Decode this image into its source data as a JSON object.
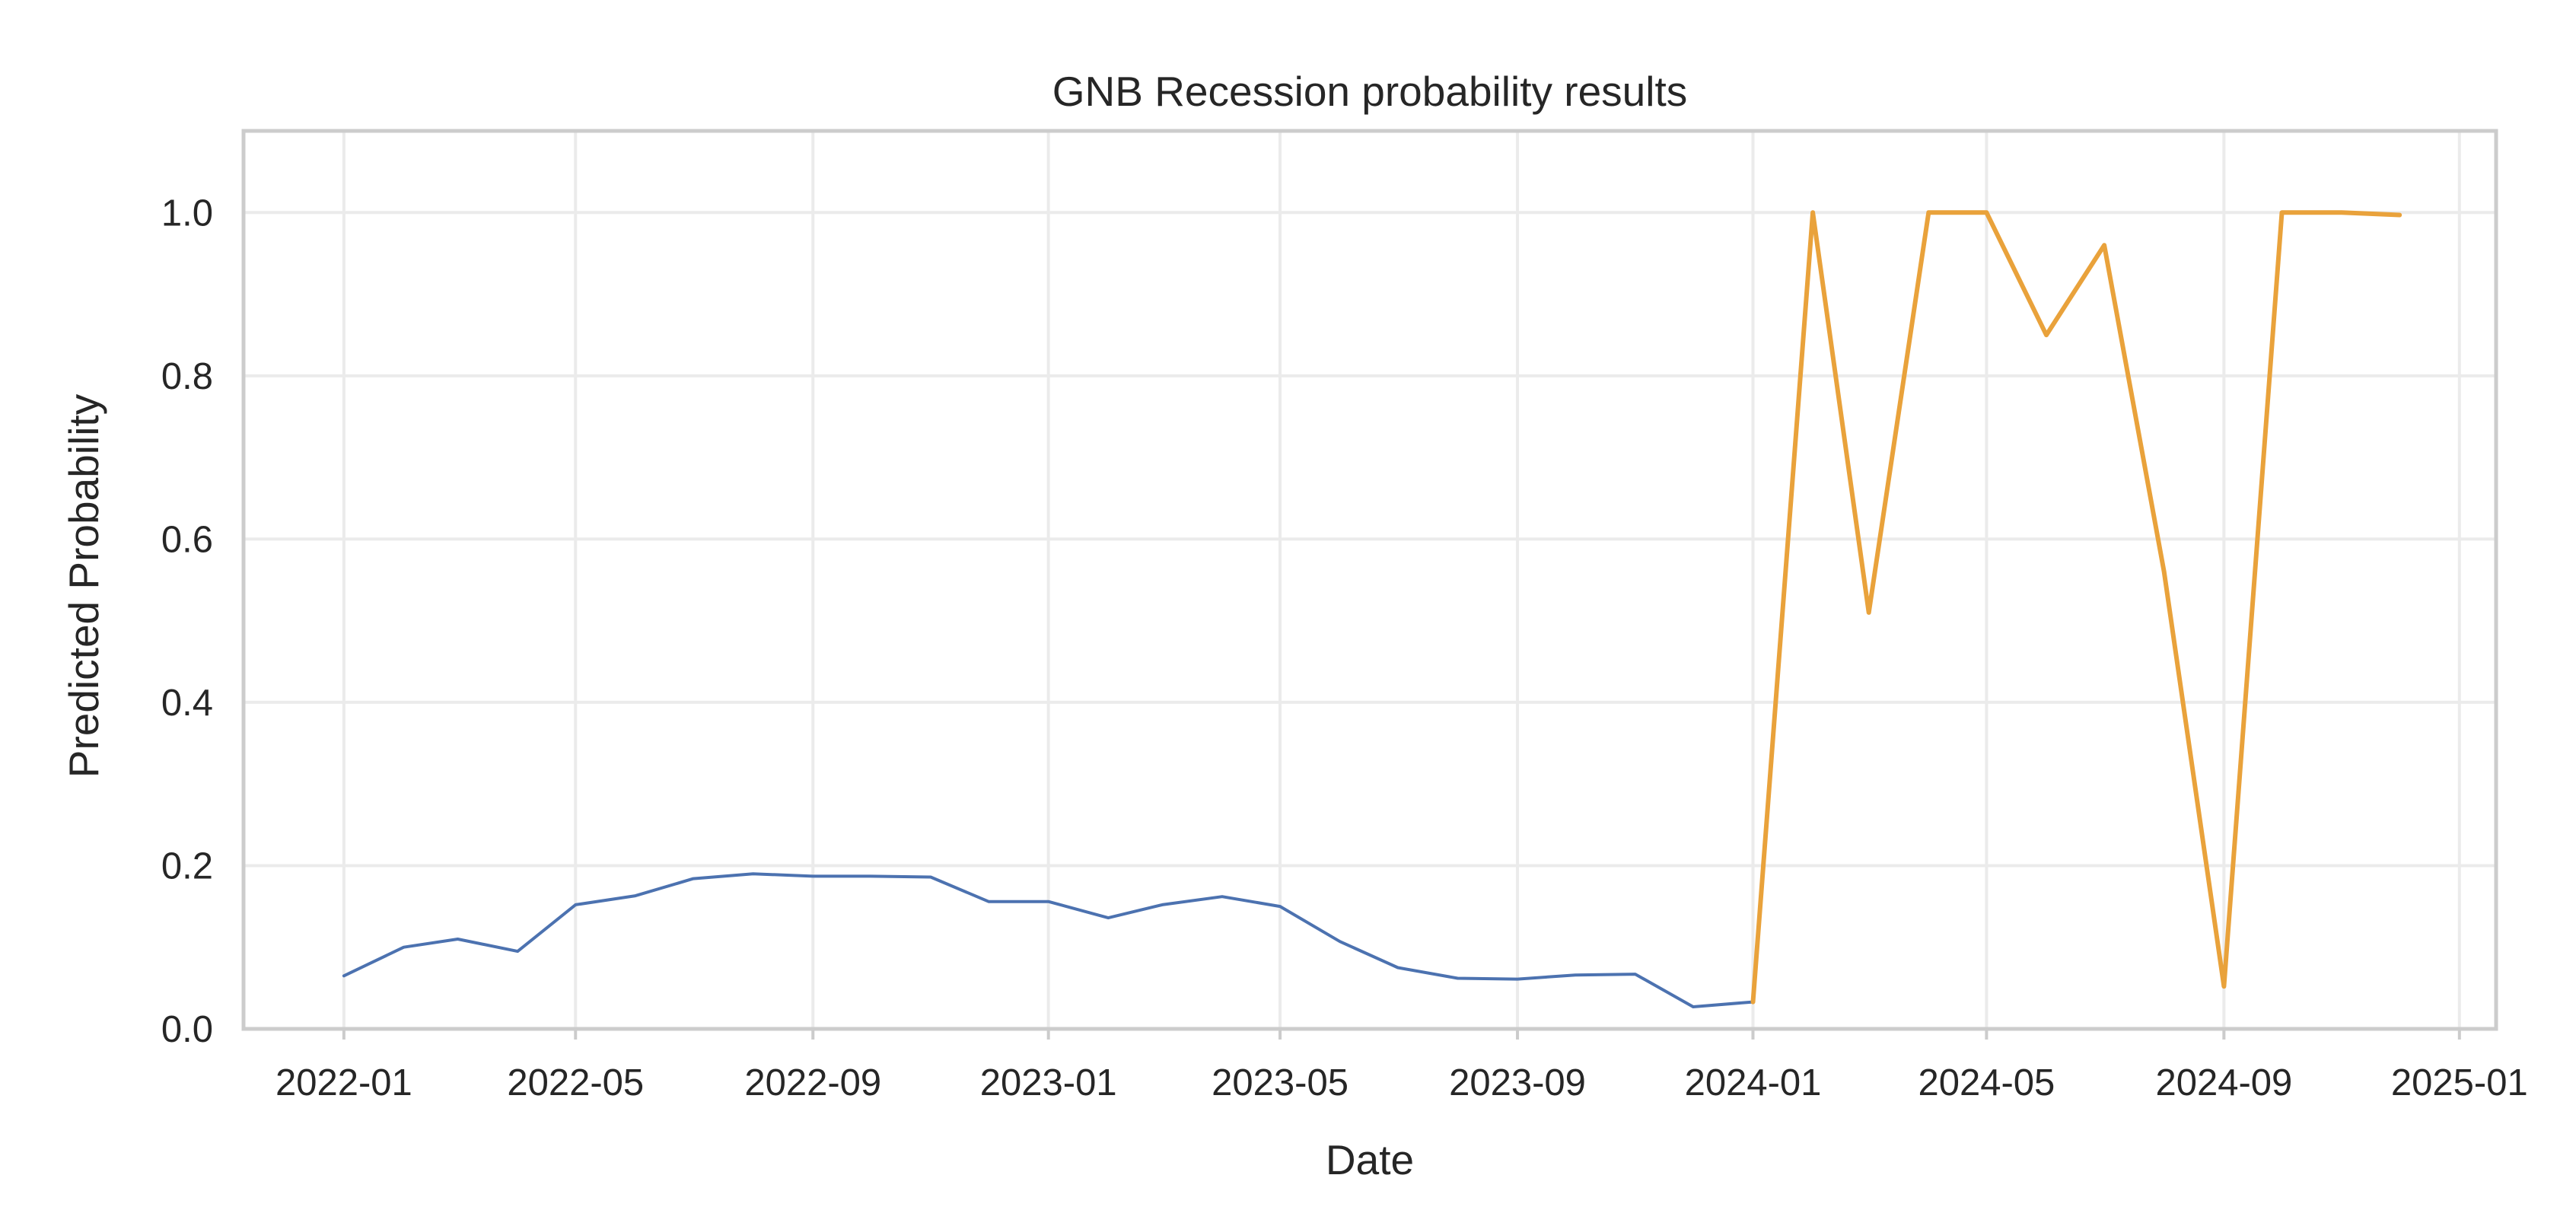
{
  "chart_data": {
    "type": "line",
    "title": "GNB Recession probability results",
    "xlabel": "Date",
    "ylabel": "Predicted Probability",
    "xlim": [
      "2021-11-10",
      "2025-01-20"
    ],
    "ylim": [
      0,
      1.1
    ],
    "x_ticks": [
      "2022-01",
      "2022-05",
      "2022-09",
      "2023-01",
      "2023-05",
      "2023-09",
      "2024-01",
      "2024-05",
      "2024-09",
      "2025-01"
    ],
    "y_ticks": [
      "0.0",
      "0.2",
      "0.4",
      "0.6",
      "0.8",
      "1.0"
    ],
    "y_tick_values": [
      0,
      0.2,
      0.4,
      0.6,
      0.8,
      1.0
    ],
    "grid": true,
    "series": [
      {
        "color": "#4c72b0",
        "x": [
          "2022-01",
          "2022-02",
          "2022-03",
          "2022-04",
          "2022-05",
          "2022-06",
          "2022-07",
          "2022-08",
          "2022-09",
          "2022-10",
          "2022-11",
          "2022-12",
          "2023-01",
          "2023-02",
          "2023-03",
          "2023-04",
          "2023-05",
          "2023-06",
          "2023-07",
          "2023-08",
          "2023-09",
          "2023-10",
          "2023-11",
          "2023-12",
          "2024-01"
        ],
        "values": [
          0.065,
          0.1,
          0.11,
          0.095,
          0.152,
          0.163,
          0.184,
          0.19,
          0.187,
          0.187,
          0.186,
          0.156,
          0.156,
          0.136,
          0.152,
          0.162,
          0.15,
          0.107,
          0.075,
          0.062,
          0.061,
          0.066,
          0.067,
          0.027,
          0.033
        ]
      },
      {
        "color": "#e9a23b",
        "x": [
          "2024-01",
          "2024-02",
          "2024-03",
          "2024-04",
          "2024-05",
          "2024-06",
          "2024-07",
          "2024-08",
          "2024-09",
          "2024-10",
          "2024-11",
          "2024-12"
        ],
        "values": [
          0.033,
          1.0,
          0.51,
          1.0,
          1.0,
          0.85,
          0.96,
          0.56,
          0.052,
          1.0,
          1.0,
          0.997
        ]
      }
    ]
  }
}
